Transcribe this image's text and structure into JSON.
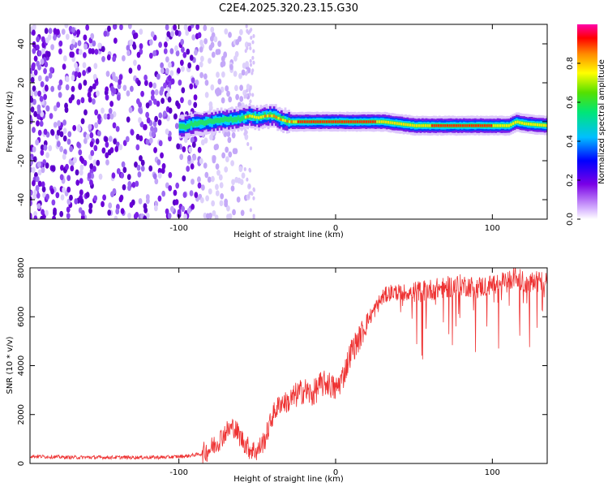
{
  "title": "C2E4.2025.320.23.15.G30",
  "chart_data": [
    {
      "type": "heatmap",
      "xlabel": "Height of straight line (km)",
      "ylabel": "Frequency (Hz)",
      "xlim": [
        -195,
        135
      ],
      "ylim": [
        -50,
        50
      ],
      "x_ticks": [
        -100,
        0,
        100
      ],
      "x_tick_labels": [
        "-100",
        "0",
        "100"
      ],
      "y_ticks": [
        -40,
        -20,
        0,
        20,
        40
      ],
      "y_tick_labels": [
        "-40",
        "-20",
        "0",
        "20",
        "40"
      ],
      "ridge": {
        "x": [
          -100,
          -90,
          -80,
          -70,
          -60,
          -55,
          -50,
          -45,
          -40,
          -35,
          -30,
          -20,
          -10,
          0,
          10,
          20,
          30,
          40,
          50,
          60,
          70,
          80,
          90,
          100,
          110,
          115,
          120,
          135
        ],
        "freq": [
          -3,
          -1,
          0,
          1,
          2,
          3,
          2,
          3,
          3,
          1,
          0,
          0,
          0,
          0,
          0,
          0,
          0,
          -1,
          -2,
          -2,
          -2,
          -2,
          -2,
          -2,
          -2,
          0,
          -1,
          -2
        ]
      },
      "colorbar": {
        "label": "Normalized spectral amplitude",
        "range": [
          0,
          1
        ],
        "ticks": [
          0.0,
          0.2,
          0.4,
          0.6,
          0.8
        ],
        "tick_labels": [
          "0.0",
          "0.2",
          "0.4",
          "0.6",
          "0.8"
        ]
      }
    },
    {
      "type": "line",
      "xlabel": "Height of straight line (km)",
      "ylabel": "SNR (10 * v/v)",
      "xlim": [
        -195,
        135
      ],
      "ylim": [
        0,
        8000
      ],
      "x_ticks": [
        -100,
        0,
        100
      ],
      "x_tick_labels": [
        "-100",
        "0",
        "100"
      ],
      "y_ticks": [
        0,
        2000,
        4000,
        6000,
        8000
      ],
      "y_tick_labels": [
        "0",
        "2000",
        "4000",
        "6000",
        "8000"
      ],
      "color": "#ee3333",
      "series": [
        {
          "name": "SNR",
          "x": [
            -195,
            -170,
            -150,
            -130,
            -110,
            -95,
            -85,
            -80,
            -75,
            -70,
            -65,
            -60,
            -55,
            -50,
            -45,
            -40,
            -35,
            -30,
            -25,
            -20,
            -15,
            -10,
            -5,
            0,
            5,
            10,
            15,
            20,
            25,
            30,
            35,
            40,
            50,
            60,
            70,
            80,
            90,
            100,
            110,
            115,
            120,
            135
          ],
          "values": [
            300,
            250,
            250,
            250,
            250,
            300,
            400,
            600,
            900,
            1300,
            1500,
            1000,
            600,
            500,
            1000,
            2000,
            2500,
            2500,
            2800,
            3000,
            2800,
            3200,
            3300,
            3000,
            3600,
            4600,
            5100,
            5800,
            6300,
            6800,
            7000,
            7000,
            7000,
            7100,
            7200,
            7300,
            7200,
            7300,
            7400,
            7700,
            7400,
            7500
          ]
        }
      ]
    }
  ]
}
